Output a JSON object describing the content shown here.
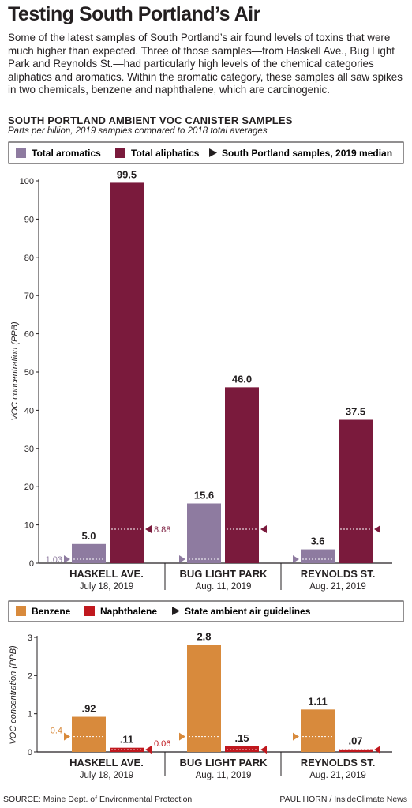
{
  "title": "Testing South Portland’s Air",
  "intro": "Some of the latest samples of South Portland’s air found levels of toxins that were much higher than expected. Three of those samples—from Haskell Ave., Bug Light Park and Reynolds St.—had particularly high levels of the chemical categories aliphatics and aromatics. Within the aromatic category, these samples all saw spikes in two chemicals, benzene and naphthalene, which are carcinogenic.",
  "chart_heading": "SOUTH PORTLAND AMBIENT VOC CANISTER SAMPLES",
  "chart_subheading": "Parts per billion, 2019 samples compared to 2018 total averages",
  "source": "SOURCE: Maine Dept. of Environmental Protection",
  "credit": "PAUL HORN / InsideClimate News",
  "colors": {
    "aromatics": "#8e7ba0",
    "aliphatics": "#7a1a3c",
    "benzene": "#d88a3c",
    "naphthalene": "#c0181e",
    "axis": "#231f20"
  },
  "chart_data": [
    {
      "type": "bar",
      "ylabel": "VOC concentration (PPB)",
      "ylim": [
        0,
        100
      ],
      "yticks": [
        "0",
        "10",
        "20",
        "30",
        "40",
        "50",
        "60",
        "70",
        "80",
        "90",
        "100"
      ],
      "legend": [
        "Total aromatics",
        "Total aliphatics",
        "South Portland samples, 2019 median"
      ],
      "categories": [
        {
          "name": "HASKELL AVE.",
          "date": "July 18, 2019"
        },
        {
          "name": "BUG LIGHT PARK",
          "date": "Aug. 11, 2019"
        },
        {
          "name": "REYNOLDS ST.",
          "date": "Aug. 21, 2019"
        }
      ],
      "series": [
        {
          "name": "Total aromatics",
          "values": [
            5.0,
            15.6,
            3.6
          ],
          "labels": [
            "5.0",
            "15.6",
            "3.6"
          ]
        },
        {
          "name": "Total aliphatics",
          "values": [
            99.5,
            46.0,
            37.5
          ],
          "labels": [
            "99.5",
            "46.0",
            "37.5"
          ]
        }
      ],
      "reference": {
        "name": "South Portland samples, 2019 median",
        "aromatics": 1.03,
        "aliphatics": 8.88,
        "aromatics_label": "1.03",
        "aliphatics_label": "8.88"
      }
    },
    {
      "type": "bar",
      "ylabel": "VOC concentration (PPB)",
      "ylim": [
        0,
        3
      ],
      "yticks": [
        "0",
        "1",
        "2",
        "3"
      ],
      "legend": [
        "Benzene",
        "Naphthalene",
        "State ambient air guidelines"
      ],
      "categories": [
        {
          "name": "HASKELL AVE.",
          "date": "July 18, 2019"
        },
        {
          "name": "BUG LIGHT PARK",
          "date": "Aug. 11, 2019"
        },
        {
          "name": "REYNOLDS ST.",
          "date": "Aug. 21, 2019"
        }
      ],
      "series": [
        {
          "name": "Benzene",
          "values": [
            0.92,
            2.8,
            1.11
          ],
          "labels": [
            ".92",
            "2.8",
            "1.11"
          ]
        },
        {
          "name": "Naphthalene",
          "values": [
            0.11,
            0.15,
            0.07
          ],
          "labels": [
            ".11",
            ".15",
            ".07"
          ]
        }
      ],
      "reference": {
        "name": "State ambient air guidelines",
        "benzene": 0.4,
        "naphthalene": 0.06,
        "benzene_label": "0.4",
        "naphthalene_label": "0.06"
      }
    }
  ]
}
